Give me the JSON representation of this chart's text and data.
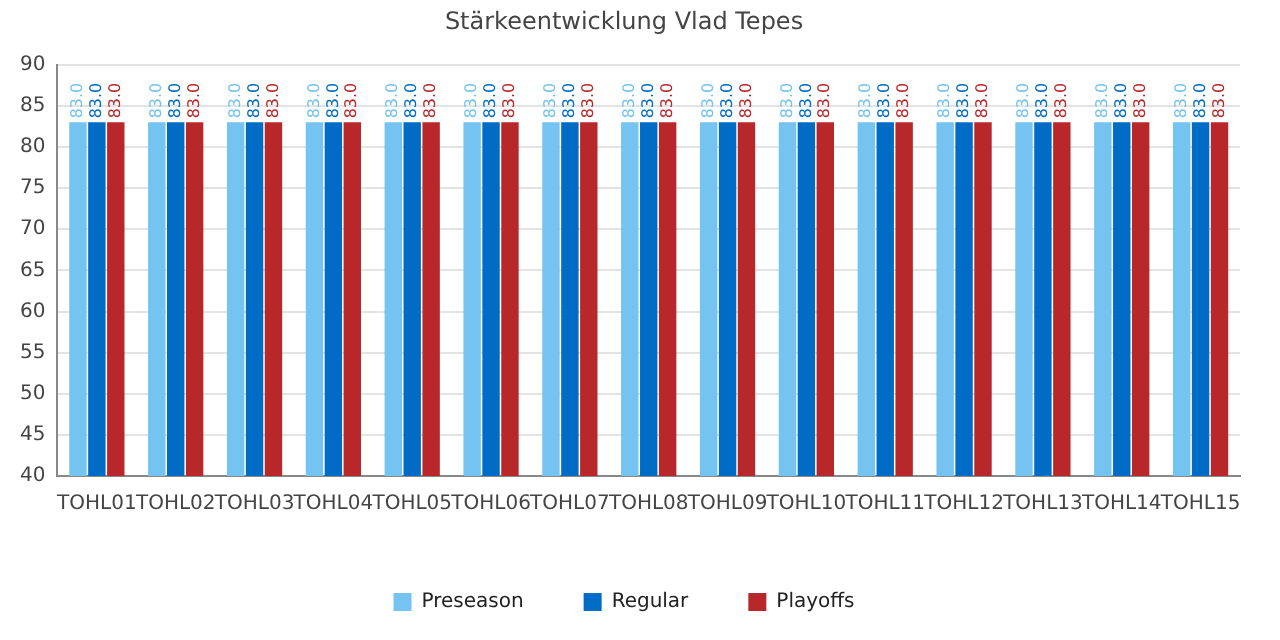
{
  "chart_data": {
    "type": "bar",
    "title": "Stärkeentwicklung Vlad Tepes",
    "categories": [
      "TOHL01",
      "TOHL02",
      "TOHL03",
      "TOHL04",
      "TOHL05",
      "TOHL06",
      "TOHL07",
      "TOHL08",
      "TOHL09",
      "TOHL10",
      "TOHL11",
      "TOHL12",
      "TOHL13",
      "TOHL14",
      "TOHL15"
    ],
    "series": [
      {
        "name": "Preseason",
        "color": "#74c3f0",
        "values": [
          83,
          83,
          83,
          83,
          83,
          83,
          83,
          83,
          83,
          83,
          83,
          83,
          83,
          83,
          83
        ],
        "value_labels": [
          "83.0",
          "83.0",
          "83.0",
          "83.0",
          "83.0",
          "83.0",
          "83.0",
          "83.0",
          "83.0",
          "83.0",
          "83.0",
          "83.0",
          "83.0",
          "83.0",
          "83.0"
        ]
      },
      {
        "name": "Regular",
        "color": "#006cc5",
        "values": [
          83,
          83,
          83,
          83,
          83,
          83,
          83,
          83,
          83,
          83,
          83,
          83,
          83,
          83,
          83
        ],
        "value_labels": [
          "83.0",
          "83.0",
          "83.0",
          "83.0",
          "83.0",
          "83.0",
          "83.0",
          "83.0",
          "83.0",
          "83.0",
          "83.0",
          "83.0",
          "83.0",
          "83.0",
          "83.0"
        ]
      },
      {
        "name": "Playoffs",
        "color": "#b8282a",
        "values": [
          83,
          83,
          83,
          83,
          83,
          83,
          83,
          83,
          83,
          83,
          83,
          83,
          83,
          83,
          83
        ],
        "value_labels": [
          "83.0",
          "83.0",
          "83.0",
          "83.0",
          "83.0",
          "83.0",
          "83.0",
          "83.0",
          "83.0",
          "83.0",
          "83.0",
          "83.0",
          "83.0",
          "83.0",
          "83.0"
        ]
      }
    ],
    "ylim": [
      40,
      90
    ],
    "yticks": [
      40,
      45,
      50,
      55,
      60,
      65,
      70,
      75,
      80,
      85,
      90
    ],
    "grid": "y",
    "legend": "bottom"
  }
}
